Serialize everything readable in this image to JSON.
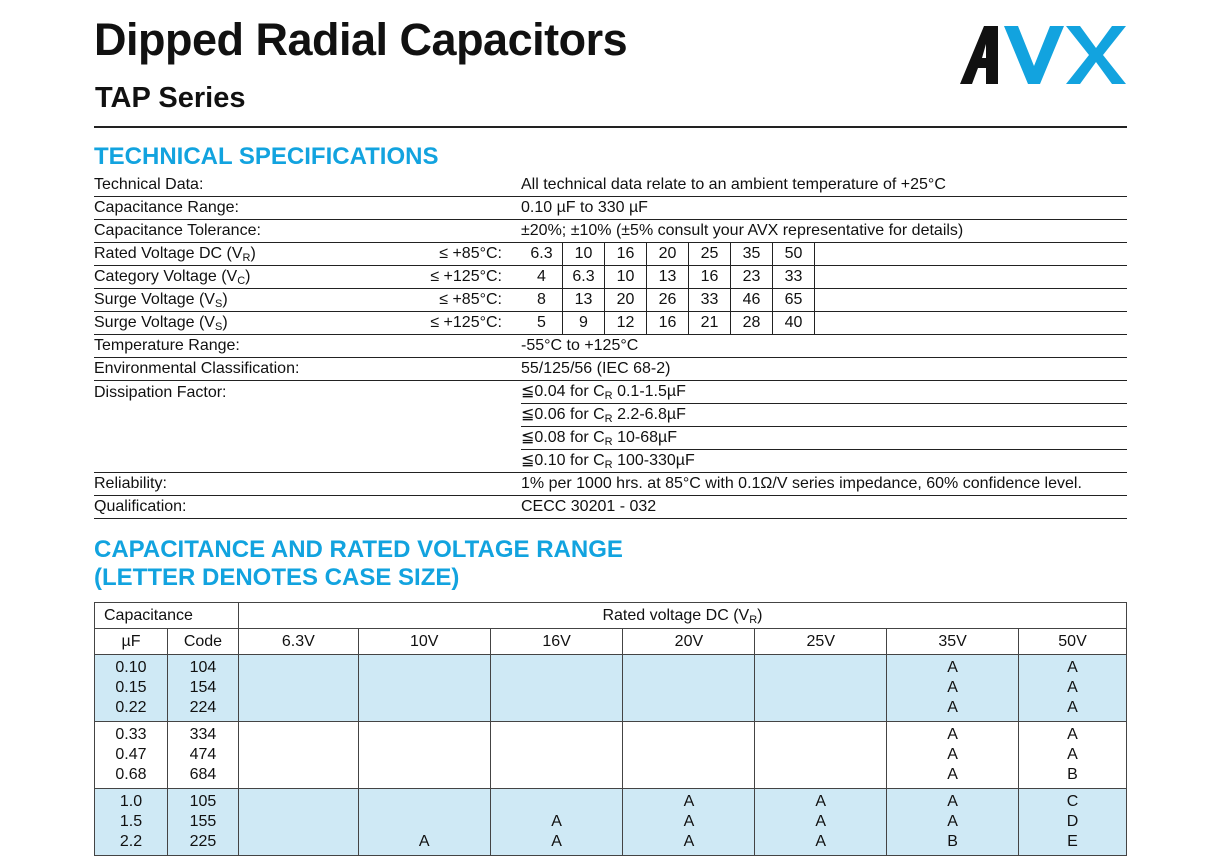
{
  "header": {
    "title": "Dipped Radial Capacitors",
    "subtitle": "TAP Series",
    "logo_text": "AVX"
  },
  "colors": {
    "accent": "#12a3df",
    "logo_blue": "#12a3df",
    "row_blue": "#cfe9f5"
  },
  "tech": {
    "heading": "TECHNICAL SPECIFICATIONS",
    "technical_data": {
      "label": "Technical Data:",
      "value": "All technical data relate to an ambient temperature of +25°C"
    },
    "cap_range": {
      "label": "Capacitance Range:",
      "value": "0.10 µF to 330 µF"
    },
    "cap_tol": {
      "label": "Capacitance Tolerance:",
      "value": "±20%; ±10% (±5% consult your AVX representative for details)"
    },
    "voltage_rows": [
      {
        "label": "Rated Voltage DC (V",
        "sub": "R",
        "label_end": ")",
        "cond": "≤ +85°C:",
        "values": [
          "6.3",
          "10",
          "16",
          "20",
          "25",
          "35",
          "50"
        ]
      },
      {
        "label": "Category Voltage (V",
        "sub": "C",
        "label_end": ")",
        "cond": "≤ +125°C:",
        "values": [
          "4",
          "6.3",
          "10",
          "13",
          "16",
          "23",
          "33"
        ]
      },
      {
        "label": "Surge Voltage (V",
        "sub": "S",
        "label_end": ")",
        "cond": "≤ +85°C:",
        "values": [
          "8",
          "13",
          "20",
          "26",
          "33",
          "46",
          "65"
        ]
      },
      {
        "label": "Surge Voltage (V",
        "sub": "S",
        "label_end": ")",
        "cond": "≤ +125°C:",
        "values": [
          "5",
          "9",
          "12",
          "16",
          "21",
          "28",
          "40"
        ]
      }
    ],
    "temp_range": {
      "label": "Temperature Range:",
      "value": "-55°C to +125°C"
    },
    "env_class": {
      "label": "Environmental Classification:",
      "value": "55/125/56 (IEC 68-2)"
    },
    "dissipation": {
      "label": "Dissipation Factor:",
      "rows": [
        {
          "pre": "≦0.04 for C",
          "sub": "R",
          "post": " 0.1-1.5µF"
        },
        {
          "pre": "≦0.06 for C",
          "sub": "R",
          "post": " 2.2-6.8µF"
        },
        {
          "pre": "≦0.08 for C",
          "sub": "R",
          "post": " 10-68µF"
        },
        {
          "pre": "≦0.10 for C",
          "sub": "R",
          "post": " 100-330µF"
        }
      ]
    },
    "reliability": {
      "label": "Reliability:",
      "value": "1% per 1000 hrs. at 85°C with 0.1Ω/V series impedance, 60% confidence level."
    },
    "qualification": {
      "label": "Qualification:",
      "value": "CECC 30201 - 032"
    }
  },
  "range": {
    "heading_line1": "CAPACITANCE AND RATED VOLTAGE RANGE",
    "heading_line2": "(LETTER DENOTES CASE SIZE)",
    "capacitance_header": "Capacitance",
    "rated_voltage_header": "Rated voltage DC (V",
    "rated_voltage_sub": "R",
    "rated_voltage_end": ")",
    "uf_header": "µF",
    "code_header": "Code",
    "voltages": [
      "6.3V",
      "10V",
      "16V",
      "20V",
      "25V",
      "35V",
      "50V"
    ],
    "groups": [
      {
        "uf": [
          "0.10",
          "0.15",
          "0.22"
        ],
        "code": [
          "104",
          "154",
          "224"
        ],
        "cells": [
          [
            "",
            "",
            ""
          ],
          [
            "",
            "",
            ""
          ],
          [
            "",
            "",
            ""
          ],
          [
            "",
            "",
            ""
          ],
          [
            "",
            "",
            ""
          ],
          [
            "A",
            "A",
            "A"
          ],
          [
            "A",
            "A",
            "A"
          ]
        ]
      },
      {
        "uf": [
          "0.33",
          "0.47",
          "0.68"
        ],
        "code": [
          "334",
          "474",
          "684"
        ],
        "cells": [
          [
            "",
            "",
            ""
          ],
          [
            "",
            "",
            ""
          ],
          [
            "",
            "",
            ""
          ],
          [
            "",
            "",
            ""
          ],
          [
            "",
            "",
            ""
          ],
          [
            "A",
            "A",
            "A"
          ],
          [
            "A",
            "A",
            "B"
          ]
        ]
      },
      {
        "uf": [
          "1.0",
          "1.5",
          "2.2"
        ],
        "code": [
          "105",
          "155",
          "225"
        ],
        "cells": [
          [
            "",
            "",
            ""
          ],
          [
            "",
            "",
            "A"
          ],
          [
            "",
            "A",
            "A"
          ],
          [
            "A",
            "A",
            "A"
          ],
          [
            "A",
            "A",
            "A"
          ],
          [
            "A",
            "A",
            "B"
          ],
          [
            "C",
            "D",
            "E"
          ]
        ]
      }
    ]
  }
}
